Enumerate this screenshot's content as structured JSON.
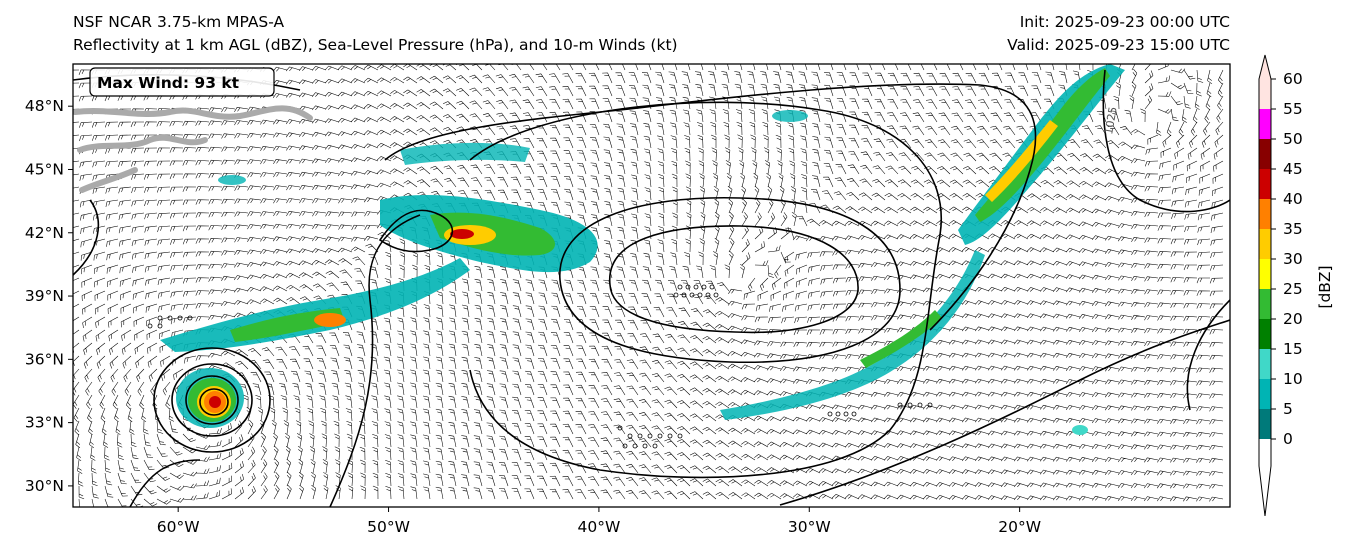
{
  "header": {
    "left_line1": "NSF NCAR 3.75-km MPAS-A",
    "left_line2": "Reflectivity at 1 km AGL (dBZ), Sea-Level Pressure (hPa), and 10-m Winds (kt)",
    "right_line1": "Init: 2025-09-23 00:00 UTC",
    "right_line2": "Valid: 2025-09-23 15:00 UTC"
  },
  "map": {
    "lon_range": [
      -65,
      -10
    ],
    "lat_range": [
      29,
      50
    ],
    "lat_ticks": [
      "48°N",
      "45°N",
      "42°N",
      "39°N",
      "36°N",
      "33°N",
      "30°N"
    ],
    "lat_tick_values": [
      48,
      45,
      42,
      39,
      36,
      33,
      30
    ],
    "lon_ticks": [
      "60°W",
      "50°W",
      "40°W",
      "30°W",
      "20°W"
    ],
    "lon_tick_values": [
      -60,
      -50,
      -40,
      -30,
      -20
    ],
    "max_wind_label": "Max Wind: 93 kt",
    "isobar_label": "1025"
  },
  "colorbar": {
    "label": "[dBZ]",
    "ticks": [
      "0",
      "5",
      "10",
      "15",
      "20",
      "25",
      "30",
      "35",
      "40",
      "45",
      "50",
      "55",
      "60"
    ],
    "colors": [
      "#007a7a",
      "#00b4b4",
      "#40d8c8",
      "#008000",
      "#33bb33",
      "#ffff00",
      "#ffcc00",
      "#ff8000",
      "#cc0000",
      "#880000",
      "#ff00ff",
      "#ffe4e1"
    ]
  }
}
